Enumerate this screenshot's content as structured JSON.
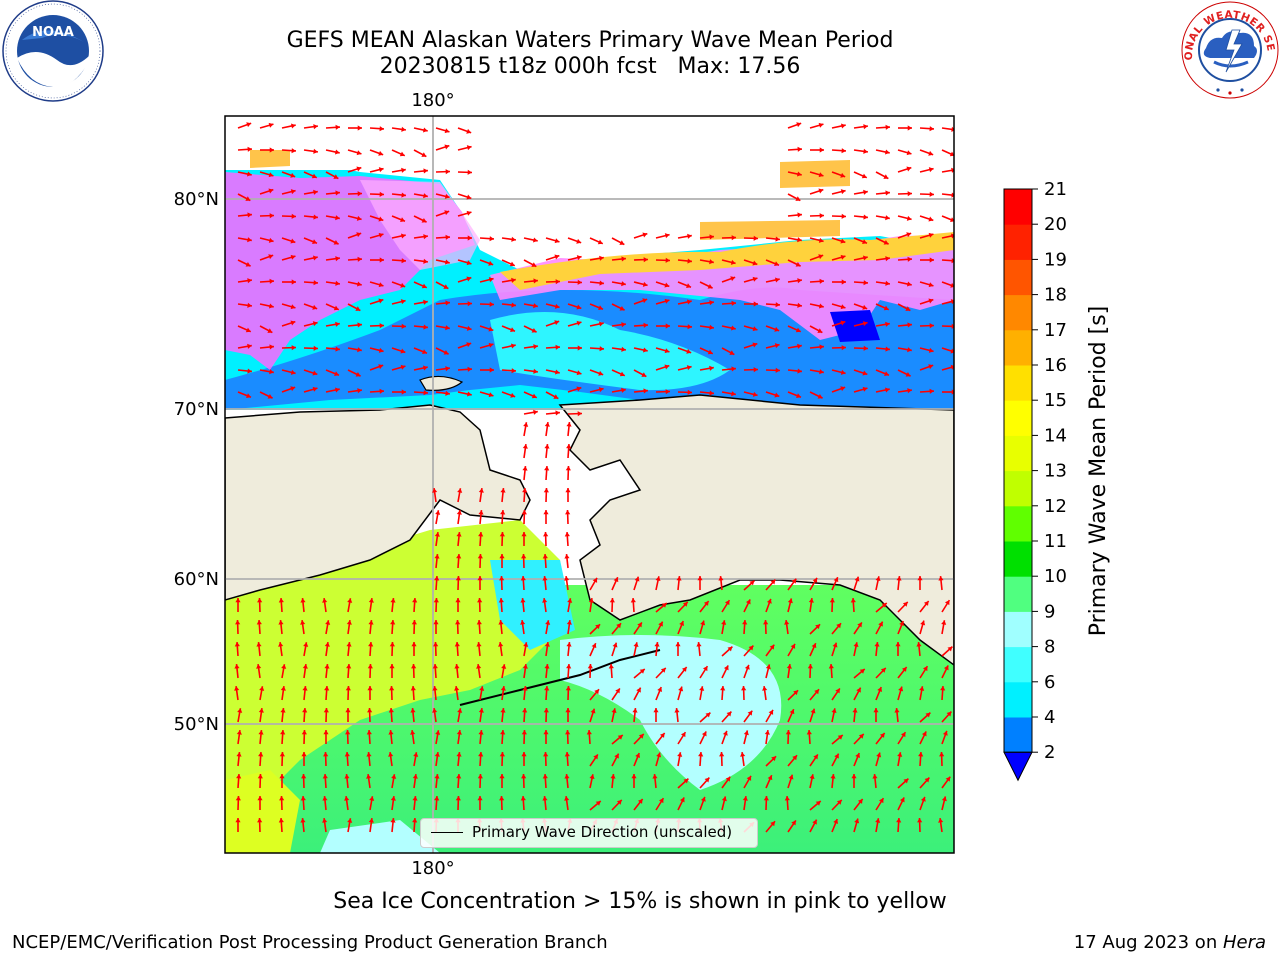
{
  "title": {
    "line1": "GEFS MEAN Alaskan Waters Primary Wave Mean Period",
    "line2": "20230815 t18z 000h fcst   Max: 17.56"
  },
  "map": {
    "lon_labels_top": [
      "180°"
    ],
    "lon_labels_bottom": [
      "180°"
    ],
    "lat_labels": [
      "80°N",
      "70°N",
      "60°N",
      "50°N"
    ],
    "land_color": "#efecdc",
    "arrow_color": "#ff0000"
  },
  "legend": {
    "label": "Primary Wave Direction (unscaled)"
  },
  "colorbar": {
    "label": "Primary Wave Mean Period [s]",
    "ticks": [
      "2",
      "4",
      "6",
      "8",
      "9",
      "10",
      "11",
      "12",
      "13",
      "14",
      "15",
      "16",
      "17",
      "18",
      "19",
      "20",
      "21"
    ],
    "colors": [
      "#0080ff",
      "#00f0ff",
      "#40ffff",
      "#a0ffff",
      "#50ff80",
      "#00e000",
      "#60ff00",
      "#c0ff00",
      "#e8ff00",
      "#ffff00",
      "#ffe000",
      "#ffb000",
      "#ff8800",
      "#ff5500",
      "#ff2200",
      "#ff0000"
    ],
    "extend_color": "#0000ff"
  },
  "note": "Sea Ice Concentration > 15% is shown in pink to yellow",
  "footer": {
    "left": "NCEP/EMC/Verification Post Processing Product Generation Branch",
    "right_prefix": "17 Aug 2023 on ",
    "right_host": "Hera"
  },
  "logos": {
    "left": "NOAA",
    "right": "NATIONAL WEATHER SERVICE"
  }
}
